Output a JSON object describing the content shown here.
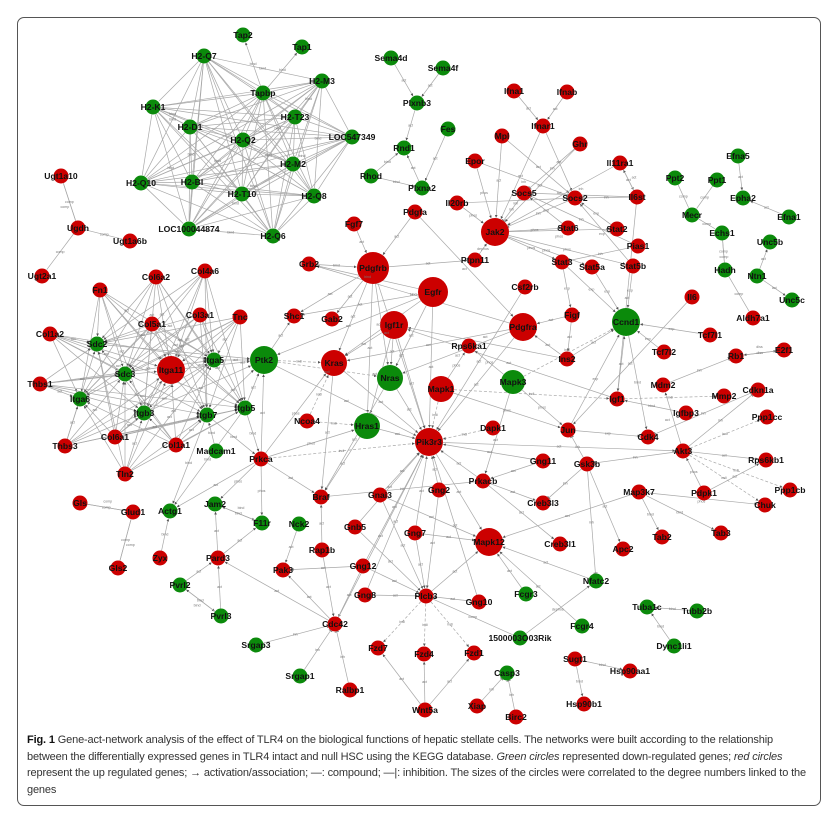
{
  "colors": {
    "down_regulated": "#0b8a0b",
    "up_regulated": "#cc0000",
    "edge": "#a8a8a8"
  },
  "caption": {
    "label": "Fig. 1",
    "part1": " Gene-act-network analysis of the effect of TLR4 on the biological functions of hepatic stellate cells. The networks were built according to the relationship between the differentially expressed genes in TLR4 intact and null HSC using the KEGG database. ",
    "green_em": "Green circles",
    "part2": " represented down-regulated genes; ",
    "red_em": "red circles",
    "part3": " represent the up regulated genes; → activation/association; —: compound; —|: inhibition. The sizes of the circles were correlated to the degree numbers linked to the genes"
  },
  "nodes": {
    "down": [
      "H2-Q7",
      "H2-M3",
      "Tapbp",
      "Tap1",
      "Tap2",
      "H2-K1",
      "H2-T23",
      "H2-D1",
      "H2-Q2",
      "LOC547349",
      "H2-M2",
      "H2-Q10",
      "H2-Bl",
      "H2-T10",
      "H2-Q8",
      "LOC100044874",
      "H2-Q6",
      "Sema4d",
      "Sema4f",
      "Plxnb3",
      "Rnd1",
      "Rhod",
      "Plxna2",
      "Fes",
      "Ppt2",
      "Ppt1",
      "Efna5",
      "Epha2",
      "Efna1",
      "Mecr",
      "Echs1",
      "Unc5b",
      "Hadh",
      "Ntn1",
      "Unc5c",
      "Sdc2",
      "Sdc3",
      "Itga5",
      "Itga6",
      "Itgb3",
      "Itgb7",
      "Itgb5",
      "Madcam1",
      "Ptk2",
      "Nras",
      "Hras1",
      "Mapk3",
      "Ccnd1",
      "Actg1",
      "Jam2",
      "F11r",
      "Nck2",
      "Pvrl2",
      "Pvrl3",
      "Srgap3",
      "Srgap1",
      "Fcgr3",
      "Fcgr4",
      "Nfatc2",
      "1500003O03Rik",
      "Tuba1c",
      "Tubb2b",
      "Dync1li1",
      "Casp3"
    ],
    "up": [
      "Ugt1a10",
      "Ugdh",
      "Ugt1a6b",
      "Ugt2a1",
      "Ifna1",
      "Ifnab",
      "Ifnar1",
      "Mpl",
      "Ghr",
      "Epor",
      "Il11ra1",
      "Socs5",
      "Socs2",
      "Il6st",
      "Il20rb",
      "Jak2",
      "Stat6",
      "Stat2",
      "Pias1",
      "Ptpn11",
      "Stat3",
      "Stat5a",
      "Stat5b",
      "Pdgfa",
      "Fgf7",
      "Grb2",
      "Pdgfrb",
      "Egfr",
      "Igf1r",
      "Pdgfra",
      "Csf2rb",
      "Figf",
      "Il6",
      "Aldh7a1",
      "Shc1",
      "Gab2",
      "Kras",
      "Rps6ka1",
      "Ins2",
      "Tcf7l1",
      "Tcf7l2",
      "Rb1",
      "E2f1",
      "Mapk1",
      "Mdm2",
      "Igf1",
      "Mmp2",
      "Cdkn1a",
      "Igfbp3",
      "Ppp1cc",
      "Dapk1",
      "Jun",
      "Cdk4",
      "Pik3r3",
      "Akt3",
      "Rps6kb1",
      "Gng11",
      "Gsk3b",
      "Prkacb",
      "Gng2",
      "Map3k7",
      "Pdpk1",
      "Ppp1cb",
      "Creb3l3",
      "Chuk",
      "Col6a2",
      "Col4a6",
      "Fn1",
      "Col3a1",
      "Tnc",
      "Col5a1",
      "Col1a2",
      "Itga11",
      "Thbs1",
      "Col6a1",
      "Col1a1",
      "Thbs3",
      "Tln2",
      "Prkca",
      "Ncoa4",
      "Braf",
      "Gnai3",
      "Gls",
      "Glud1",
      "Gls2",
      "Zyx",
      "Pard3",
      "Gnb5",
      "Rap1b",
      "Pak3",
      "Gng12",
      "Gng8",
      "Gng7",
      "Cdc42",
      "Ralbp1",
      "Mapk12",
      "Creb3l1",
      "Apc2",
      "Tab2",
      "Tab3",
      "Plcb3",
      "Gng10",
      "Fzd7",
      "Fzd4",
      "Fzd1",
      "Wnt5a",
      "Xiap",
      "Birc2",
      "Sugt1",
      "Hsp90aa1",
      "Hsp90b1"
    ]
  },
  "clique": {
    "members": [
      "H2-Q7",
      "H2-M3",
      "Tapbp",
      "H2-K1",
      "H2-T23",
      "H2-D1",
      "H2-Q2",
      "LOC547349",
      "H2-M2",
      "H2-Q10",
      "H2-Bl",
      "H2-T10",
      "H2-Q8",
      "LOC100044874",
      "H2-Q6"
    ],
    "type": "bind"
  },
  "bipartite": {
    "ligands": [
      "Col6a2",
      "Col4a6",
      "Fn1",
      "Col3a1",
      "Tnc",
      "Col5a1",
      "Col1a2",
      "Thbs1",
      "Col6a1",
      "Col1a1",
      "Thbs3",
      "Tln2"
    ],
    "receptors": [
      "Sdc2",
      "Sdc3",
      "Itga5",
      "Itga11",
      "Itga6",
      "Itgb3",
      "Itgb7",
      "Itgb5"
    ],
    "type": "act"
  },
  "edges": [
    [
      "Tapbp",
      "Tap1",
      "bind"
    ],
    [
      "Tapbp",
      "Tap2",
      "bind"
    ],
    [
      "Sema4d",
      "Plxnb3",
      "act"
    ],
    [
      "Sema4f",
      "Plxnb3",
      "act"
    ],
    [
      "Plxnb3",
      "Rnd1",
      "act"
    ],
    [
      "Plxna2",
      "Rnd1",
      "act"
    ],
    [
      "Rhod",
      "Plxna2",
      "bind"
    ],
    [
      "Rhod",
      "Rnd1",
      "bind"
    ],
    [
      "Fes",
      "Plxna2",
      "act"
    ],
    [
      "Ugt1a10",
      "Ugdh",
      "comp"
    ],
    [
      "Ugdh",
      "Ugt1a10",
      "comp"
    ],
    [
      "Ugt1a6b",
      "Ugdh",
      "comp"
    ],
    [
      "Ugdh",
      "Ugt2a1",
      "comp"
    ],
    [
      "Ifna1",
      "Ifnar1",
      "act"
    ],
    [
      "Ifnab",
      "Ifnar1",
      "act"
    ],
    [
      "Ifnar1",
      "Jak2",
      "act"
    ],
    [
      "Ifnar1",
      "Socs2",
      "act"
    ],
    [
      "Mpl",
      "Jak2",
      "act"
    ],
    [
      "Mpl",
      "Socs2",
      "act"
    ],
    [
      "Ghr",
      "Jak2",
      "act"
    ],
    [
      "Ghr",
      "Socs5",
      "inh"
    ],
    [
      "Epor",
      "Jak2",
      "phos"
    ],
    [
      "Epor",
      "Socs2",
      "inh"
    ],
    [
      "Il11ra1",
      "Jak2",
      "act"
    ],
    [
      "Il11ra1",
      "Il6st",
      "act"
    ],
    [
      "Il6st",
      "Il11ra1",
      "act"
    ],
    [
      "Il6st",
      "Socs2",
      "inh"
    ],
    [
      "Il6st",
      "Socs5",
      "inh"
    ],
    [
      "Il20rb",
      "Jak2",
      "phos"
    ],
    [
      "Il20rb",
      "Socs2",
      "inh"
    ],
    [
      "Socs5",
      "Jak2",
      "inh"
    ],
    [
      "Socs2",
      "Jak2",
      "inh"
    ],
    [
      "Jak2",
      "Stat6",
      "phos"
    ],
    [
      "Jak2",
      "Stat2",
      "phos"
    ],
    [
      "Jak2",
      "Stat3",
      "phos"
    ],
    [
      "Jak2",
      "Stat5a",
      "phos"
    ],
    [
      "Jak2",
      "Stat5b",
      "phos"
    ],
    [
      "Pias1",
      "Stat3",
      "inh"
    ],
    [
      "Pias1",
      "Socs5",
      "inh"
    ],
    [
      "Stat2",
      "Socs2",
      "exp"
    ],
    [
      "Stat5b",
      "Socs2",
      "exp"
    ],
    [
      "Stat6",
      "Socs5",
      "exp"
    ],
    [
      "Ptpn11",
      "Jak2",
      "dephos"
    ],
    [
      "Stat3",
      "Ccnd1",
      "exp"
    ],
    [
      "Stat5a",
      "Ccnd1",
      "exp"
    ],
    [
      "Stat5b",
      "Ccnd1",
      "exp"
    ],
    [
      "Stat3",
      "Figf",
      "exp"
    ],
    [
      "Il6",
      "Jun",
      "act"
    ],
    [
      "Ppt2",
      "Mecr",
      "comp"
    ],
    [
      "Ppt1",
      "Mecr",
      "comp"
    ],
    [
      "Mecr",
      "Echs1",
      "comp"
    ],
    [
      "Echs1",
      "Hadh",
      "comp"
    ],
    [
      "Hadh",
      "Echs1",
      "comp"
    ],
    [
      "Efna5",
      "Epha2",
      "act"
    ],
    [
      "Efna1",
      "Epha2",
      "act"
    ],
    [
      "Ntn1",
      "Unc5b",
      "act"
    ],
    [
      "Ntn1",
      "Unc5c",
      "act"
    ],
    [
      "Hadh",
      "Aldh7a1",
      "comp"
    ],
    [
      "Pdgfa",
      "Pdgfra",
      "act"
    ],
    [
      "Pdgfa",
      "Pdgfrb",
      "act"
    ],
    [
      "Fgf7",
      "Pdgfrb",
      "act"
    ],
    [
      "Grb2",
      "Pdgfrb",
      "bind"
    ],
    [
      "Pdgfrb",
      "Ptpn11",
      "act"
    ],
    [
      "Pdgfrb",
      "Kras",
      "act"
    ],
    [
      "Pdgfrb",
      "Nras",
      "act"
    ],
    [
      "Pdgfrb",
      "Hras1",
      "act"
    ],
    [
      "Pdgfrb",
      "Pik3r3",
      "act"
    ],
    [
      "Pdgfrb",
      "Shc1",
      "act"
    ],
    [
      "Pdgfrb",
      "Gab2",
      "act"
    ],
    [
      "Egfr",
      "Grb2",
      "bind"
    ],
    [
      "Egfr",
      "Kras",
      "act"
    ],
    [
      "Egfr",
      "Nras",
      "act"
    ],
    [
      "Egfr",
      "Pik3r3",
      "act"
    ],
    [
      "Egfr",
      "Ptk2",
      "act"
    ],
    [
      "Egfr",
      "Shc1",
      "act"
    ],
    [
      "Igf1r",
      "Kras",
      "act"
    ],
    [
      "Igf1r",
      "Nras",
      "act"
    ],
    [
      "Igf1r",
      "Hras1",
      "act"
    ],
    [
      "Igf1r",
      "Pik3r3",
      "act"
    ],
    [
      "Pdgfra",
      "Kras",
      "act"
    ],
    [
      "Pdgfra",
      "Nras",
      "act"
    ],
    [
      "Pdgfra",
      "Pik3r3",
      "act"
    ],
    [
      "Pdgfra",
      "Grb2",
      "bind"
    ],
    [
      "Csf2rb",
      "Pik3r3",
      "act"
    ],
    [
      "Figf",
      "Pdgfra",
      "act"
    ],
    [
      "Ins2",
      "Igf1r",
      "act"
    ],
    [
      "Igf1",
      "Igf1r",
      "act"
    ],
    [
      "Ins2",
      "Pdgfra",
      "act"
    ],
    [
      "Kras",
      "Braf",
      "act"
    ],
    [
      "Nras",
      "Braf",
      "act"
    ],
    [
      "Hras1",
      "Braf",
      "act"
    ],
    [
      "Kras",
      "Pik3r3",
      "act"
    ],
    [
      "Nras",
      "Pik3r3",
      "act"
    ],
    [
      "Hras1",
      "Pik3r3",
      "act"
    ],
    [
      "Mapk1",
      "Rps6ka1",
      "phos"
    ],
    [
      "Mapk3",
      "Rps6ka1",
      "phos"
    ],
    [
      "Mapk1",
      "Jun",
      "phos"
    ],
    [
      "Mapk3",
      "Jun",
      "phos"
    ],
    [
      "Mapk3",
      "Ccnd1",
      "indi"
    ],
    [
      "Mapk1",
      "Igf1",
      "indi"
    ],
    [
      "Mapk1",
      "Pik3r3",
      "indi"
    ],
    [
      "Ptk2",
      "Pik3r3",
      "act"
    ],
    [
      "Ptk2",
      "Shc1",
      "act"
    ],
    [
      "Ptk2",
      "Kras",
      "indi"
    ],
    [
      "Ptk2",
      "Nras",
      "indi"
    ],
    [
      "Prkca",
      "Ptk2",
      "act"
    ],
    [
      "Prkca",
      "Kras",
      "phos"
    ],
    [
      "Prkca",
      "Braf",
      "act"
    ],
    [
      "Prkca",
      "Hras1",
      "phos"
    ],
    [
      "Ncoa4",
      "Hras1",
      "indi"
    ],
    [
      "Ncoa4",
      "Kras",
      "indi"
    ],
    [
      "Prkca",
      "Pik3r3",
      "indi"
    ],
    [
      "Gnai3",
      "Pik3r3",
      "act"
    ],
    [
      "Gng2",
      "Pik3r3",
      "act"
    ],
    [
      "Gng7",
      "Pik3r3",
      "act"
    ],
    [
      "Gng12",
      "Pik3r3",
      "act"
    ],
    [
      "Gng8",
      "Pik3r3",
      "act"
    ],
    [
      "Gnb5",
      "Pik3r3",
      "act"
    ],
    [
      "Gng11",
      "Pik3r3",
      "act"
    ],
    [
      "Gng10",
      "Pik3r3",
      "act"
    ],
    [
      "Gnb5",
      "Plcb3",
      "act"
    ],
    [
      "Gng2",
      "Plcb3",
      "act"
    ],
    [
      "Gng7",
      "Plcb3",
      "act"
    ],
    [
      "Gng12",
      "Plcb3",
      "act"
    ],
    [
      "Gng8",
      "Plcb3",
      "act"
    ],
    [
      "Gng10",
      "Plcb3",
      "act"
    ],
    [
      "Gnai3",
      "Plcb3",
      "act"
    ],
    [
      "Plcb3",
      "Fzd4",
      "indi"
    ],
    [
      "Plcb3",
      "Fzd1",
      "indi"
    ],
    [
      "Plcb3",
      "Fzd7",
      "indi"
    ],
    [
      "Wnt5a",
      "Fzd4",
      "act"
    ],
    [
      "Wnt5a",
      "Fzd1",
      "act"
    ],
    [
      "Wnt5a",
      "Fzd7",
      "act"
    ],
    [
      "Plcb3",
      "1500003O03Rik",
      "comp"
    ],
    [
      "1500003O03Rik",
      "Nfatc2",
      "dephos"
    ],
    [
      "Nfatc2",
      "Mapk12",
      "act"
    ],
    [
      "Fcgr3",
      "Mapk12",
      "act"
    ],
    [
      "Fcgr4",
      "Mapk12",
      "act"
    ],
    [
      "Gsk3b",
      "Nfatc2",
      "inh"
    ],
    [
      "Plcb3",
      "Mapk12",
      "act"
    ],
    [
      "Gng7",
      "Mapk12",
      "act"
    ],
    [
      "Gnai3",
      "Mapk12",
      "act"
    ],
    [
      "Pik3r3",
      "Mapk12",
      "act"
    ],
    [
      "Map3k7",
      "Mapk12",
      "act"
    ],
    [
      "Prkacb",
      "Creb3l1",
      "act"
    ],
    [
      "Prkacb",
      "Creb3l3",
      "act"
    ],
    [
      "Gsk3b",
      "Creb3l3",
      "inh"
    ],
    [
      "Gsk3b",
      "Jun",
      "inh"
    ],
    [
      "Gsk3b",
      "Apc2",
      "act"
    ],
    [
      "Akt3",
      "Gsk3b",
      "inh"
    ],
    [
      "Pdpk1",
      "Akt3",
      "phos"
    ],
    [
      "Akt3",
      "Chuk",
      "indi"
    ],
    [
      "Akt3",
      "Rps6kb1",
      "act"
    ],
    [
      "Akt3",
      "Mdm2",
      "act"
    ],
    [
      "Akt3",
      "Cdkn1a",
      "inh"
    ],
    [
      "Pdpk1",
      "Rps6kb1",
      "act"
    ],
    [
      "Akt3",
      "Ppp1cc",
      "indi"
    ],
    [
      "Akt3",
      "Ppp1cb",
      "indi"
    ],
    [
      "Pik3r3",
      "Akt3",
      "act"
    ],
    [
      "Map3k7",
      "Tab2",
      "bind"
    ],
    [
      "Map3k7",
      "Tab3",
      "bind"
    ],
    [
      "Map3k7",
      "Chuk",
      "phos"
    ],
    [
      "Dapk1",
      "Pik3r3",
      "indi"
    ],
    [
      "Mapk3",
      "Prkacb",
      "act"
    ],
    [
      "Prkacb",
      "Pik3r3",
      "act"
    ],
    [
      "Gng11",
      "Prkacb",
      "act"
    ],
    [
      "Prkacb",
      "Braf",
      "inh"
    ],
    [
      "Rap1b",
      "Braf",
      "act"
    ],
    [
      "Cdc42",
      "Pak3",
      "act"
    ],
    [
      "Nck2",
      "Pak3",
      "act"
    ],
    [
      "Gng12",
      "Pak3",
      "act"
    ],
    [
      "Cdc42",
      "Pard3",
      "act"
    ],
    [
      "Rap1b",
      "Cdc42",
      "act"
    ],
    [
      "Gng12",
      "Cdc42",
      "act"
    ],
    [
      "Srgap3",
      "Cdc42",
      "inh"
    ],
    [
      "Srgap1",
      "Cdc42",
      "inh"
    ],
    [
      "Ralbp1",
      "Cdc42",
      "inh"
    ],
    [
      "Cdc42",
      "Pik3r3",
      "act"
    ],
    [
      "Pard3",
      "Jam2",
      "act"
    ],
    [
      "Pard3",
      "F11r",
      "act"
    ],
    [
      "Jam2",
      "F11r",
      "bind"
    ],
    [
      "F11r",
      "Jam2",
      "bind"
    ],
    [
      "Pvrl2",
      "Pard3",
      "act"
    ],
    [
      "Pvrl3",
      "Pard3",
      "act"
    ],
    [
      "Pvrl2",
      "Pvrl3",
      "bind"
    ],
    [
      "Pvrl3",
      "Pvrl2",
      "bind"
    ],
    [
      "Zyx",
      "Actg1",
      "bind"
    ],
    [
      "Gls",
      "Glud1",
      "comp"
    ],
    [
      "Glud1",
      "Gls",
      "comp"
    ],
    [
      "Glud1",
      "Gls2",
      "comp"
    ],
    [
      "Gls2",
      "Glud1",
      "comp"
    ],
    [
      "Itgb7",
      "Actg1",
      "bind"
    ],
    [
      "Itgb5",
      "Actg1",
      "bind"
    ],
    [
      "Prkca",
      "Actg1",
      "act"
    ],
    [
      "Prkca",
      "Jam2",
      "phos"
    ],
    [
      "Prkca",
      "F11r",
      "phos"
    ],
    [
      "Sdc2",
      "Ptk2",
      "act"
    ],
    [
      "Itga5",
      "Ptk2",
      "act"
    ],
    [
      "Itga11",
      "Ptk2",
      "act"
    ],
    [
      "Itgb5",
      "Ptk2",
      "act"
    ],
    [
      "Itgb7",
      "Ptk2",
      "act"
    ],
    [
      "Itgb3",
      "Ptk2",
      "act"
    ],
    [
      "Madcam1",
      "Itgb7",
      "bind"
    ],
    [
      "Itgb5",
      "Prkca",
      "bind"
    ],
    [
      "Itgb7",
      "Prkca",
      "bind"
    ],
    [
      "Ccnd1",
      "Cdk4",
      "bind"
    ],
    [
      "Cdkn1a",
      "Cdk4",
      "inh"
    ],
    [
      "Rb1",
      "E2f1",
      "diss"
    ],
    [
      "E2f1",
      "Rb1",
      "diss"
    ],
    [
      "Mdm2",
      "Rb1",
      "inh"
    ],
    [
      "Tcf7l1",
      "Ccnd1",
      "exp"
    ],
    [
      "Tcf7l2",
      "Ccnd1",
      "exp"
    ],
    [
      "Jun",
      "Ccnd1",
      "exp"
    ],
    [
      "Igfbp3",
      "Igf1",
      "bind"
    ],
    [
      "Igf1",
      "Mmp2",
      "indi"
    ],
    [
      "Jun",
      "Cdk4",
      "exp"
    ],
    [
      "Ins2",
      "Ccnd1",
      "act"
    ],
    [
      "Igf1",
      "Ccnd1",
      "act"
    ],
    [
      "Il6st",
      "Igf1",
      "act"
    ],
    [
      "Figf",
      "Ins2",
      "act"
    ],
    [
      "Tubb2b",
      "Tuba1c",
      "bind"
    ],
    [
      "Dync1li1",
      "Tuba1c",
      "bind"
    ],
    [
      "Sugt1",
      "Hsp90aa1",
      "bind"
    ],
    [
      "Sugt1",
      "Hsp90b1",
      "bind"
    ],
    [
      "Xiap",
      "Casp3",
      "inh"
    ],
    [
      "Birc2",
      "Casp3",
      "inh"
    ]
  ]
}
